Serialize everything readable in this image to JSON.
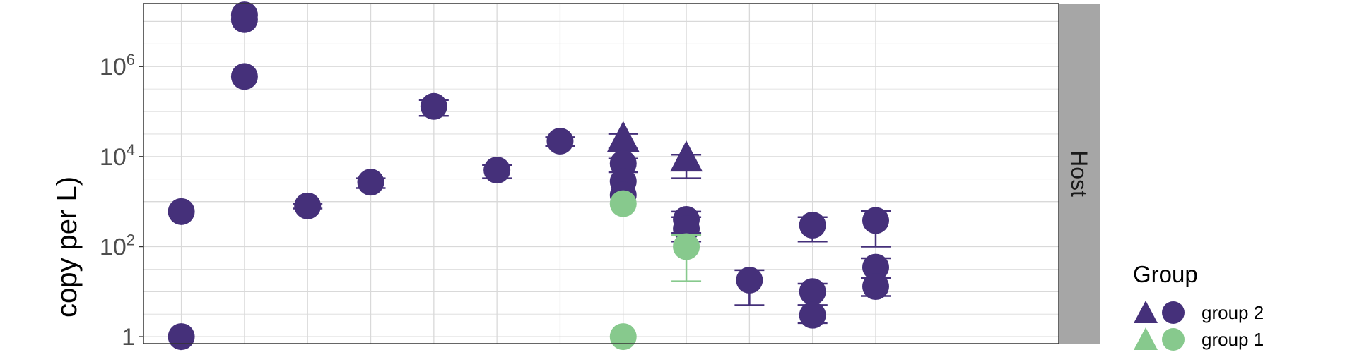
{
  "chart_data": {
    "type": "scatter",
    "ylabel": "copy per L)",
    "yscale": "log",
    "ylim": [
      0.7,
      25000000
    ],
    "y_ticks": [
      {
        "base": "1",
        "exp": ""
      },
      {
        "base": "10",
        "exp": "2"
      },
      {
        "base": "10",
        "exp": "4"
      },
      {
        "base": "10",
        "exp": "6"
      }
    ],
    "y_tick_values": [
      1,
      100,
      10000,
      1000000
    ],
    "x_categories": 12,
    "grid": true,
    "facet": "Host",
    "legend": {
      "title": "Group",
      "position": "right",
      "entries": [
        {
          "label": "group 2",
          "color": "#45307a"
        },
        {
          "label": "group 1",
          "color": "#87c98d"
        }
      ]
    },
    "colors": {
      "group 2": "#45307a",
      "group 1": "#87c98d",
      "panel_border": "#333333",
      "grid": "#d9d9d9",
      "strip": "#a6a6a6"
    },
    "points": [
      {
        "x": 1,
        "y": 600,
        "group": "group 2",
        "shape": "circle"
      },
      {
        "x": 1,
        "y": 1,
        "group": "group 2",
        "shape": "circle"
      },
      {
        "x": 2,
        "y": 14000000,
        "group": "group 2",
        "shape": "circle"
      },
      {
        "x": 2,
        "y": 11000000,
        "group": "group 2",
        "shape": "circle"
      },
      {
        "x": 2,
        "y": 600000,
        "group": "group 2",
        "shape": "circle"
      },
      {
        "x": 3,
        "y": 800,
        "group": "group 2",
        "shape": "circle",
        "err": [
          700,
          900
        ]
      },
      {
        "x": 4,
        "y": 2700,
        "group": "group 2",
        "shape": "circle",
        "err": [
          2000,
          3300
        ]
      },
      {
        "x": 5,
        "y": 130000,
        "group": "group 2",
        "shape": "circle",
        "err": [
          80000,
          180000
        ]
      },
      {
        "x": 6,
        "y": 5000,
        "group": "group 2",
        "shape": "circle",
        "err": [
          3300,
          6500
        ]
      },
      {
        "x": 7,
        "y": 22000,
        "group": "group 2",
        "shape": "circle",
        "err": [
          17000,
          27000
        ]
      },
      {
        "x": 8,
        "y": 23000,
        "group": "group 2",
        "shape": "triangle",
        "err": [
          15000,
          32000
        ]
      },
      {
        "x": 8,
        "y": 7000,
        "group": "group 2",
        "shape": "circle",
        "err": [
          4500,
          9000
        ]
      },
      {
        "x": 8,
        "y": 2800,
        "group": "group 2",
        "shape": "circle"
      },
      {
        "x": 8,
        "y": 1400,
        "group": "group 2",
        "shape": "circle"
      },
      {
        "x": 8,
        "y": 900,
        "group": "group 1",
        "shape": "circle"
      },
      {
        "x": 8,
        "y": 1,
        "group": "group 1",
        "shape": "circle"
      },
      {
        "x": 9,
        "y": 8500,
        "group": "group 2",
        "shape": "triangle",
        "err": [
          3300,
          11000
        ]
      },
      {
        "x": 9,
        "y": 400,
        "group": "group 2",
        "shape": "circle",
        "err": [
          200,
          600
        ]
      },
      {
        "x": 9,
        "y": 250,
        "group": "group 2",
        "shape": "circle",
        "err": [
          130,
          450
        ]
      },
      {
        "x": 9,
        "y": 100,
        "group": "group 1",
        "shape": "circle",
        "err": [
          17,
          180
        ]
      },
      {
        "x": 10,
        "y": 18,
        "group": "group 2",
        "shape": "circle",
        "err": [
          5,
          30
        ]
      },
      {
        "x": 11,
        "y": 300,
        "group": "group 2",
        "shape": "circle",
        "err": [
          130,
          450
        ]
      },
      {
        "x": 11,
        "y": 10,
        "group": "group 2",
        "shape": "circle",
        "err": [
          5,
          15
        ]
      },
      {
        "x": 11,
        "y": 3,
        "group": "group 2",
        "shape": "circle",
        "err": [
          2,
          5
        ]
      },
      {
        "x": 12,
        "y": 380,
        "group": "group 2",
        "shape": "circle",
        "err": [
          100,
          620
        ]
      },
      {
        "x": 12,
        "y": 35,
        "group": "group 2",
        "shape": "circle",
        "err": [
          20,
          55
        ]
      },
      {
        "x": 12,
        "y": 13,
        "group": "group 2",
        "shape": "circle",
        "err": [
          8,
          20
        ]
      }
    ]
  }
}
